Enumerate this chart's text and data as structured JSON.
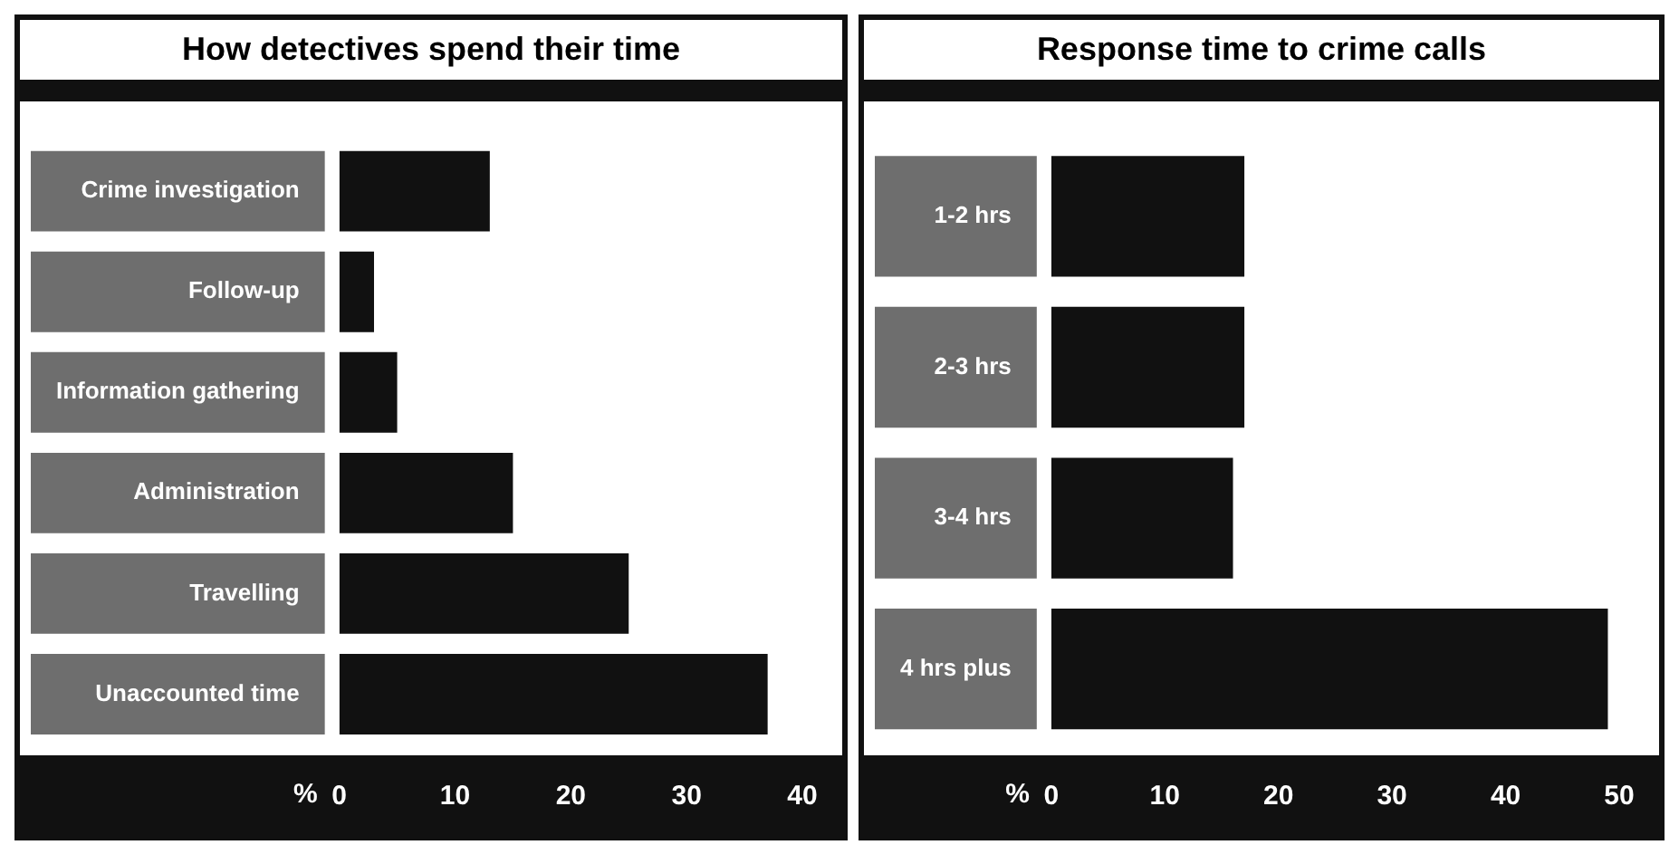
{
  "chart_data": [
    {
      "type": "bar",
      "orientation": "horizontal",
      "title": "How detectives spend their time",
      "xlabel": "%",
      "categories": [
        "Crime investigation",
        "Follow-up",
        "Information gathering",
        "Administration",
        "Travelling",
        "Unaccounted time"
      ],
      "values": [
        13,
        3,
        5,
        15,
        25,
        37
      ],
      "color": "#111111",
      "xlim": [
        0,
        40
      ],
      "xticks": [
        0,
        10,
        20,
        30,
        40
      ]
    },
    {
      "type": "bar",
      "orientation": "horizontal",
      "title": "Response time to crime calls",
      "xlabel": "%",
      "categories": [
        "1-2 hrs",
        "2-3 hrs",
        "3-4 hrs",
        "4 hrs plus"
      ],
      "values": [
        17,
        17,
        16,
        49
      ],
      "color": "#111111",
      "xlim": [
        0,
        50
      ],
      "xticks": [
        0,
        10,
        20,
        30,
        40,
        50
      ]
    }
  ]
}
